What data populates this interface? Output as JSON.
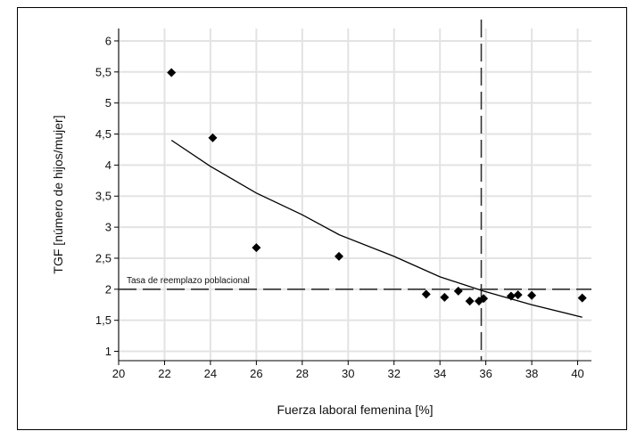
{
  "chart_data": {
    "type": "scatter",
    "xlabel": "Fuerza laboral femenina [%]",
    "ylabel": "TGF [número de hijos/mujer]",
    "xlim": [
      20,
      40.6
    ],
    "ylim": [
      0.85,
      6.2
    ],
    "x_ticks": [
      "20",
      "22",
      "24",
      "26",
      "28",
      "30",
      "32",
      "34",
      "36",
      "38",
      "40"
    ],
    "y_ticks": [
      "1",
      "1,5",
      "2",
      "2,5",
      "3",
      "3,5",
      "4",
      "4,5",
      "5",
      "5,5",
      "6"
    ],
    "grid": true,
    "points": [
      {
        "x": 22.3,
        "y": 5.49
      },
      {
        "x": 24.1,
        "y": 4.44
      },
      {
        "x": 26.0,
        "y": 2.67
      },
      {
        "x": 29.6,
        "y": 2.53
      },
      {
        "x": 33.4,
        "y": 1.92
      },
      {
        "x": 34.2,
        "y": 1.87
      },
      {
        "x": 34.8,
        "y": 1.97
      },
      {
        "x": 35.3,
        "y": 1.81
      },
      {
        "x": 35.7,
        "y": 1.81
      },
      {
        "x": 35.9,
        "y": 1.85
      },
      {
        "x": 37.1,
        "y": 1.89
      },
      {
        "x": 37.4,
        "y": 1.91
      },
      {
        "x": 38.0,
        "y": 1.9
      },
      {
        "x": 40.2,
        "y": 1.86
      }
    ],
    "trend_line": [
      {
        "x": 22.3,
        "y": 4.4
      },
      {
        "x": 24.0,
        "y": 3.98
      },
      {
        "x": 26.0,
        "y": 3.55
      },
      {
        "x": 28.0,
        "y": 3.2
      },
      {
        "x": 29.6,
        "y": 2.88
      },
      {
        "x": 32.0,
        "y": 2.53
      },
      {
        "x": 34.0,
        "y": 2.2
      },
      {
        "x": 35.9,
        "y": 1.97
      },
      {
        "x": 38.0,
        "y": 1.75
      },
      {
        "x": 40.2,
        "y": 1.55
      }
    ],
    "reference_lines": {
      "horizontal": {
        "y": 2,
        "label": "Tasa de reemplazo poblacional",
        "style": "dashed"
      },
      "vertical": {
        "x": 35.8,
        "style": "dashed"
      }
    }
  }
}
